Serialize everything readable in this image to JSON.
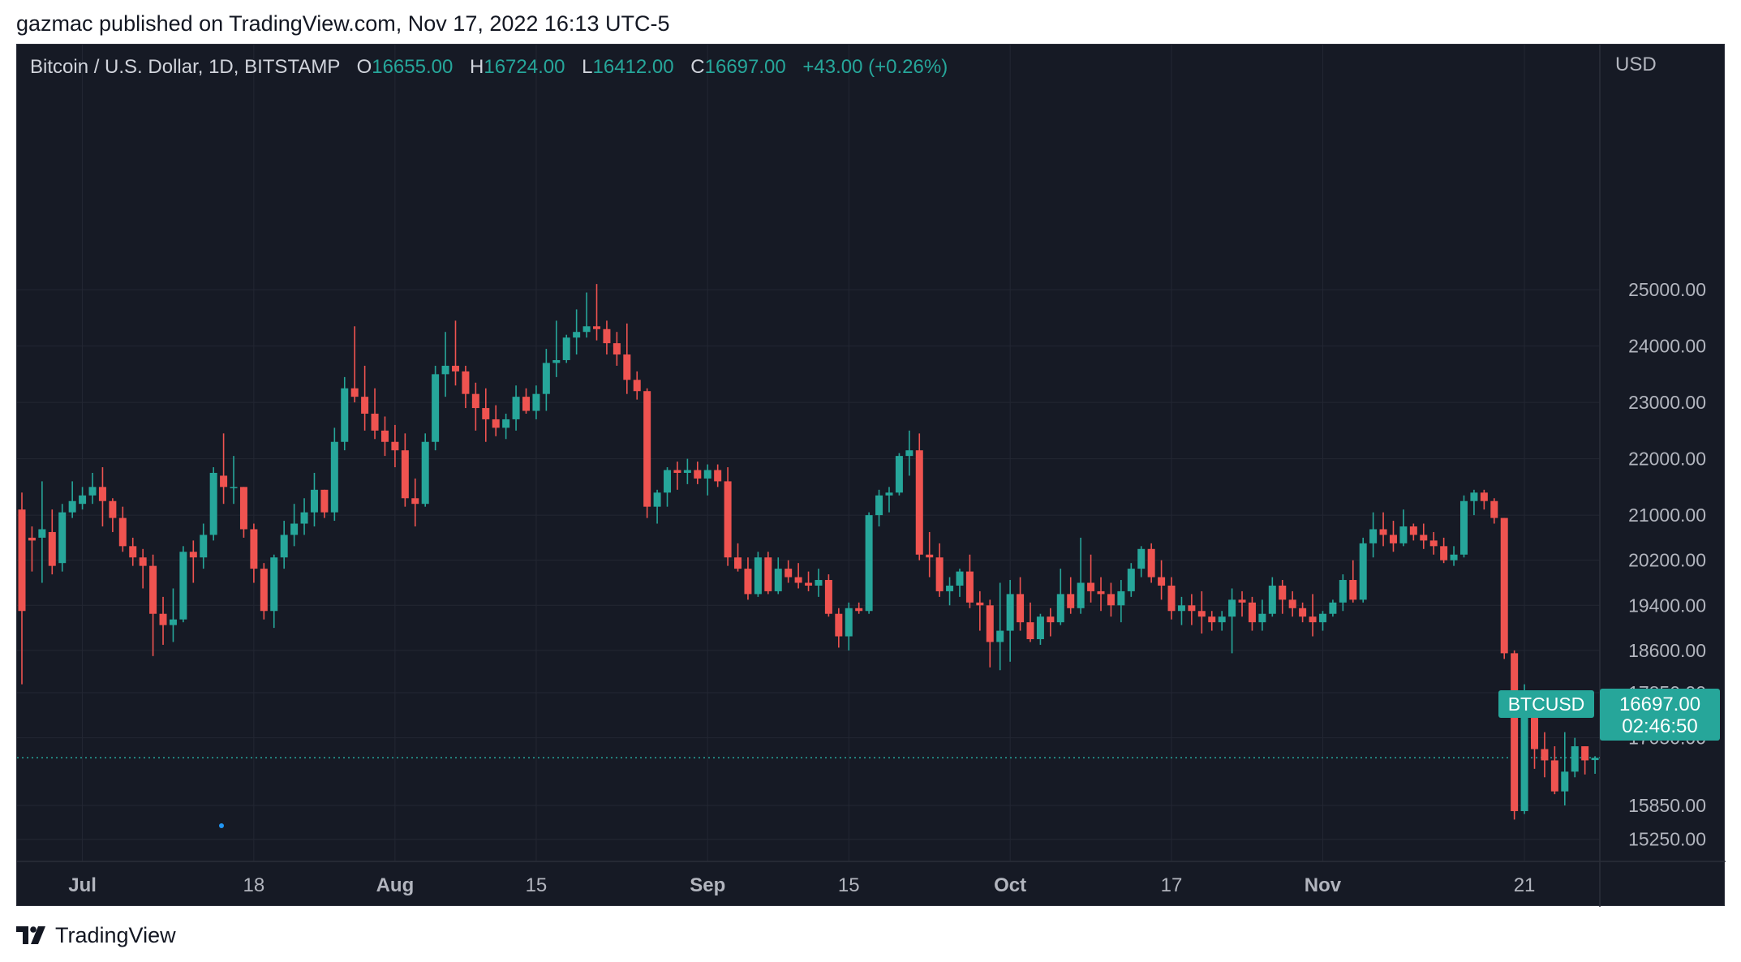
{
  "header": {
    "published_line": "gazmac published on TradingView.com, Nov 17, 2022 16:13 UTC-5"
  },
  "legend": {
    "symbol": "Bitcoin / U.S. Dollar, 1D, BITSTAMP",
    "open_label": "O",
    "open": "16655.00",
    "high_label": "H",
    "high": "16724.00",
    "low_label": "L",
    "low": "16412.00",
    "close_label": "C",
    "close": "16697.00",
    "change": "+43.00 (+0.26%)"
  },
  "price_axis": {
    "currency": "USD",
    "ticks": [
      "25000.00",
      "24000.00",
      "23000.00",
      "22000.00",
      "21000.00",
      "20200.00",
      "19400.00",
      "18600.00",
      "17850.00",
      "17050.00",
      "15850.00",
      "15250.00"
    ]
  },
  "price_tag": {
    "symbol": "BTCUSD",
    "price": "16697.00",
    "countdown": "02:46:50"
  },
  "footer": {
    "brand": "TradingView"
  },
  "colors": {
    "up": "#26a69a",
    "down": "#ef5350",
    "background": "#161a25",
    "grid": "#232733",
    "text": "#d1d4dc",
    "axis_text": "#b2b5be"
  },
  "chart_data": {
    "type": "candlestick",
    "title": "Bitcoin / U.S. Dollar, 1D, BITSTAMP",
    "interval": "1D",
    "y_ticks": [
      25000,
      24000,
      23000,
      22000,
      21000,
      20200,
      19400,
      18600,
      17850,
      17050,
      15850,
      15250
    ],
    "ylim": [
      14800,
      26000
    ],
    "xlim": [
      "2022-06-25",
      "2022-11-29"
    ],
    "x_ticks": [
      {
        "date": "2022-07-01",
        "label": "Jul"
      },
      {
        "date": "2022-07-18",
        "label": "18"
      },
      {
        "date": "2022-08-01",
        "label": "Aug"
      },
      {
        "date": "2022-08-15",
        "label": "15"
      },
      {
        "date": "2022-09-01",
        "label": "Sep"
      },
      {
        "date": "2022-09-15",
        "label": "15"
      },
      {
        "date": "2022-10-01",
        "label": "Oct"
      },
      {
        "date": "2022-10-17",
        "label": "17"
      },
      {
        "date": "2022-11-01",
        "label": "Nov"
      },
      {
        "date": "2022-11-21",
        "label": "21"
      }
    ],
    "start_date": "2022-06-25",
    "candles": [
      [
        21100,
        21400,
        18000,
        19300
      ],
      [
        20600,
        20800,
        20000,
        20550
      ],
      [
        20600,
        21600,
        19800,
        20750
      ],
      [
        20700,
        21100,
        19950,
        20100
      ],
      [
        20150,
        21200,
        20000,
        21050
      ],
      [
        21050,
        21600,
        20950,
        21250
      ],
      [
        21200,
        21500,
        21100,
        21350
      ],
      [
        21350,
        21750,
        21200,
        21500
      ],
      [
        21500,
        21850,
        20800,
        21250
      ],
      [
        21250,
        21300,
        20700,
        20950
      ],
      [
        20950,
        21150,
        20350,
        20450
      ],
      [
        20450,
        20600,
        20100,
        20250
      ],
      [
        20250,
        20400,
        19700,
        20100
      ],
      [
        20100,
        20300,
        18500,
        19250
      ],
      [
        19250,
        19550,
        18700,
        19050
      ],
      [
        19050,
        19700,
        18750,
        19150
      ],
      [
        19150,
        20450,
        19100,
        20350
      ],
      [
        20350,
        20550,
        19800,
        20250
      ],
      [
        20250,
        20850,
        20050,
        20650
      ],
      [
        20650,
        21850,
        20550,
        21750
      ],
      [
        21700,
        22450,
        21200,
        21500
      ],
      [
        21500,
        22050,
        21200,
        21500
      ],
      [
        21500,
        21500,
        20600,
        20750
      ],
      [
        20750,
        20850,
        19800,
        20050
      ],
      [
        20050,
        20150,
        19150,
        19300
      ],
      [
        19300,
        20300,
        19000,
        20250
      ],
      [
        20250,
        20900,
        20050,
        20650
      ],
      [
        20650,
        21200,
        20450,
        20850
      ],
      [
        20850,
        21300,
        20650,
        21050
      ],
      [
        21050,
        21750,
        20800,
        21450
      ],
      [
        21450,
        21450,
        20950,
        21050
      ],
      [
        21050,
        22550,
        20900,
        22300
      ],
      [
        22300,
        23450,
        22150,
        23250
      ],
      [
        23250,
        24350,
        23000,
        23100
      ],
      [
        23100,
        23650,
        22500,
        22800
      ],
      [
        22800,
        23250,
        22350,
        22500
      ],
      [
        22500,
        22750,
        22050,
        22300
      ],
      [
        22300,
        22600,
        21850,
        22150
      ],
      [
        22150,
        22450,
        21150,
        21300
      ],
      [
        21300,
        21650,
        20800,
        21200
      ],
      [
        21200,
        22450,
        21150,
        22300
      ],
      [
        22300,
        23650,
        22150,
        23500
      ],
      [
        23500,
        24250,
        23100,
        23650
      ],
      [
        23650,
        24450,
        23300,
        23550
      ],
      [
        23550,
        23650,
        22900,
        23150
      ],
      [
        23150,
        23350,
        22500,
        22900
      ],
      [
        22900,
        23250,
        22300,
        22700
      ],
      [
        22700,
        22950,
        22400,
        22550
      ],
      [
        22550,
        22800,
        22350,
        22700
      ],
      [
        22700,
        23300,
        22500,
        23100
      ],
      [
        23100,
        23250,
        22800,
        22850
      ],
      [
        22850,
        23300,
        22700,
        23150
      ],
      [
        23150,
        23950,
        22850,
        23700
      ],
      [
        23700,
        24450,
        23450,
        23750
      ],
      [
        23750,
        24200,
        23700,
        24150
      ],
      [
        24150,
        24650,
        23850,
        24250
      ],
      [
        24250,
        24950,
        24150,
        24350
      ],
      [
        24350,
        25100,
        24100,
        24300
      ],
      [
        24300,
        24450,
        23850,
        24050
      ],
      [
        24050,
        24250,
        23650,
        23850
      ],
      [
        23850,
        24400,
        23150,
        23400
      ],
      [
        23400,
        23550,
        23050,
        23200
      ],
      [
        23200,
        23250,
        20950,
        21150
      ],
      [
        21150,
        21450,
        20850,
        21400
      ],
      [
        21400,
        21850,
        21150,
        21800
      ],
      [
        21800,
        21950,
        21450,
        21750
      ],
      [
        21750,
        22000,
        21550,
        21800
      ],
      [
        21800,
        21950,
        21550,
        21650
      ],
      [
        21650,
        21900,
        21350,
        21800
      ],
      [
        21800,
        21900,
        21500,
        21600
      ],
      [
        21600,
        21850,
        20100,
        20250
      ],
      [
        20250,
        20500,
        20000,
        20050
      ],
      [
        20050,
        20250,
        19500,
        19600
      ],
      [
        19600,
        20350,
        19550,
        20250
      ],
      [
        20250,
        20350,
        19600,
        19650
      ],
      [
        19650,
        20250,
        19600,
        20050
      ],
      [
        20050,
        20200,
        19800,
        19900
      ],
      [
        19900,
        20150,
        19700,
        19800
      ],
      [
        19800,
        20000,
        19650,
        19750
      ],
      [
        19750,
        20050,
        19550,
        19850
      ],
      [
        19850,
        19950,
        19200,
        19250
      ],
      [
        19250,
        19350,
        18650,
        18850
      ],
      [
        18850,
        19450,
        18600,
        19350
      ],
      [
        19350,
        19450,
        19250,
        19300
      ],
      [
        19300,
        21050,
        19250,
        21000
      ],
      [
        21000,
        21450,
        20800,
        21350
      ],
      [
        21350,
        21500,
        21050,
        21400
      ],
      [
        21400,
        22100,
        21350,
        22050
      ],
      [
        22050,
        22500,
        21700,
        22150
      ],
      [
        22150,
        22450,
        20200,
        20300
      ],
      [
        20300,
        20700,
        19900,
        20250
      ],
      [
        20250,
        20500,
        19550,
        19650
      ],
      [
        19650,
        19900,
        19400,
        19750
      ],
      [
        19750,
        20050,
        19550,
        20000
      ],
      [
        20000,
        20300,
        19350,
        19450
      ],
      [
        19450,
        19650,
        18950,
        19400
      ],
      [
        19400,
        19500,
        18300,
        18750
      ],
      [
        18750,
        19800,
        18250,
        18950
      ],
      [
        18950,
        19850,
        18400,
        19600
      ],
      [
        19600,
        19900,
        18950,
        19100
      ],
      [
        19100,
        19450,
        18750,
        18800
      ],
      [
        18800,
        19250,
        18700,
        19200
      ],
      [
        19200,
        19350,
        18850,
        19100
      ],
      [
        19100,
        20050,
        19050,
        19600
      ],
      [
        19600,
        19900,
        19250,
        19350
      ],
      [
        19350,
        20600,
        19250,
        19800
      ],
      [
        19800,
        20300,
        19450,
        19650
      ],
      [
        19650,
        19900,
        19300,
        19600
      ],
      [
        19600,
        19800,
        19200,
        19400
      ],
      [
        19400,
        19850,
        19100,
        19650
      ],
      [
        19650,
        20150,
        19550,
        20050
      ],
      [
        20050,
        20450,
        19900,
        20400
      ],
      [
        20400,
        20500,
        19800,
        19900
      ],
      [
        19900,
        20200,
        19500,
        19750
      ],
      [
        19750,
        19900,
        19150,
        19300
      ],
      [
        19300,
        19550,
        19050,
        19400
      ],
      [
        19400,
        19600,
        19050,
        19300
      ],
      [
        19300,
        19650,
        18900,
        19200
      ],
      [
        19200,
        19300,
        18950,
        19100
      ],
      [
        19100,
        19300,
        18950,
        19200
      ],
      [
        19200,
        19700,
        18550,
        19500
      ],
      [
        19500,
        19650,
        19200,
        19450
      ],
      [
        19450,
        19550,
        18950,
        19100
      ],
      [
        19100,
        19500,
        18950,
        19250
      ],
      [
        19250,
        19900,
        19200,
        19750
      ],
      [
        19750,
        19850,
        19250,
        19500
      ],
      [
        19500,
        19650,
        19200,
        19350
      ],
      [
        19350,
        19450,
        19100,
        19200
      ],
      [
        19200,
        19600,
        18850,
        19100
      ],
      [
        19100,
        19300,
        18950,
        19250
      ],
      [
        19250,
        19500,
        19200,
        19450
      ],
      [
        19450,
        19950,
        19300,
        19850
      ],
      [
        19850,
        20200,
        19450,
        19500
      ],
      [
        19500,
        20600,
        19450,
        20500
      ],
      [
        20500,
        21050,
        20250,
        20750
      ],
      [
        20750,
        21050,
        20450,
        20650
      ],
      [
        20650,
        20900,
        20350,
        20500
      ],
      [
        20500,
        21100,
        20450,
        20800
      ],
      [
        20800,
        20850,
        20550,
        20650
      ],
      [
        20650,
        20850,
        20400,
        20550
      ],
      [
        20550,
        20700,
        20300,
        20450
      ],
      [
        20450,
        20600,
        20150,
        20200
      ],
      [
        20200,
        20450,
        20100,
        20300
      ],
      [
        20300,
        21350,
        20250,
        21250
      ],
      [
        21250,
        21450,
        21000,
        21400
      ],
      [
        21400,
        21450,
        21100,
        21250
      ],
      [
        21250,
        21300,
        20850,
        20950
      ],
      [
        20950,
        20950,
        18450,
        18550
      ],
      [
        18550,
        18600,
        15600,
        15750
      ],
      [
        15750,
        18000,
        15700,
        17550
      ],
      [
        17550,
        17600,
        16500,
        16850
      ],
      [
        16850,
        17150,
        16350,
        16650
      ],
      [
        16650,
        16900,
        16050,
        16100
      ],
      [
        16100,
        17150,
        15850,
        16450
      ],
      [
        16450,
        17050,
        16350,
        16900
      ],
      [
        16900,
        16900,
        16400,
        16650
      ],
      [
        16655,
        16724,
        16412,
        16697
      ]
    ]
  }
}
